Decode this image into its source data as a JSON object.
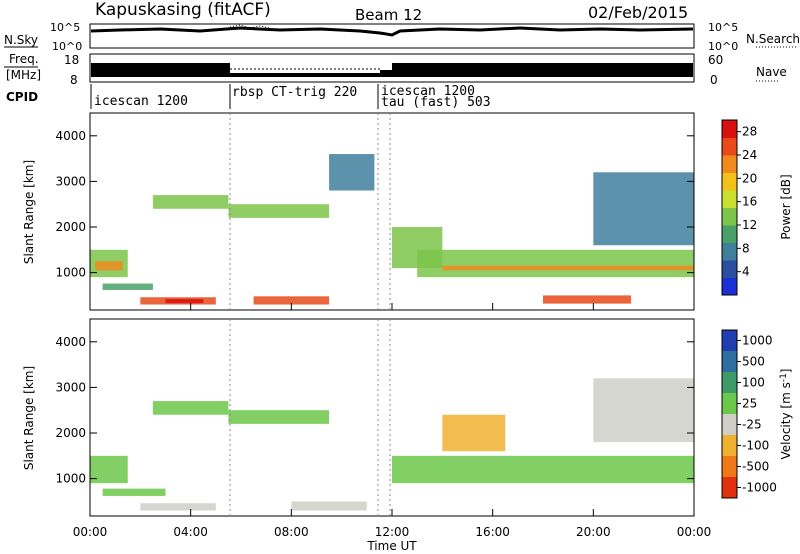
{
  "header": {
    "station": "Kapuskasing (fitACF)",
    "beam": "Beam 12",
    "date": "02/Feb/2015"
  },
  "top_panels": {
    "nsky_label": "N.Sky",
    "nsky_ticks": [
      "10^5",
      "10^0"
    ],
    "nsearch_label": "N.Search",
    "nsearch_ticks": [
      "10^5",
      "10^0"
    ],
    "freq_label_1": "Freq.",
    "freq_label_2": "[MHz]",
    "freq_ticks": [
      "18",
      "8"
    ],
    "nave_label": "Nave",
    "nave_ticks": [
      "60",
      "0"
    ],
    "cpid_label": "CPID"
  },
  "cpid_segments": [
    {
      "label": "icescan 1200",
      "start_hour": 0.0
    },
    {
      "label": "rbsp CT-trig 220",
      "start_hour": 5.5
    },
    {
      "label": "icescan 1200",
      "start_hour": 11.5
    },
    {
      "label": "tau (fast) 503",
      "start_hour": 11.5
    }
  ],
  "x_axis": {
    "label": "Time UT",
    "ticks": [
      "00:00",
      "04:00",
      "08:00",
      "12:00",
      "16:00",
      "20:00",
      "00:00"
    ]
  },
  "power_panel": {
    "ylabel": "Slant Range [km]",
    "yticks": [
      "1000",
      "2000",
      "3000",
      "4000"
    ],
    "colorbar_label": "Power [dB]",
    "colorbar_ticks": [
      "4",
      "8",
      "12",
      "16",
      "20",
      "24",
      "28"
    ],
    "colors": [
      "#1a2fd6",
      "#2b4fa0",
      "#3f7f9c",
      "#4aa06a",
      "#7cc44a",
      "#c9e030",
      "#f2c21a",
      "#f08a1c",
      "#e84a1a",
      "#d81010"
    ]
  },
  "velocity_panel": {
    "ylabel": "Slant Range [km]",
    "yticks": [
      "1000",
      "2000",
      "3000",
      "4000"
    ],
    "colorbar_label": "Velocity [m s",
    "colorbar_label_sup": "-1",
    "colorbar_ticks": [
      "1000",
      "500",
      "100",
      "25",
      "-25",
      "-100",
      "-500",
      "-1000"
    ],
    "colors": [
      "#1f3fb0",
      "#2f6fa0",
      "#3f9a6a",
      "#6cc84a",
      "#cfcfc8",
      "#f0b030",
      "#f07818",
      "#e03010"
    ]
  },
  "chart_data": [
    {
      "type": "heatmap",
      "title": "Power",
      "xlabel": "Time UT",
      "ylabel": "Slant Range [km]",
      "xlim": [
        0,
        24
      ],
      "ylim": [
        180,
        4500
      ],
      "zlabel": "Power [dB]",
      "zlim": [
        0,
        30
      ],
      "regions": [
        {
          "t0": 0.0,
          "t1": 1.5,
          "r0": 900,
          "r1": 1500,
          "value": 14
        },
        {
          "t0": 0.2,
          "t1": 1.3,
          "r0": 1050,
          "r1": 1250,
          "value": 22
        },
        {
          "t0": 0.5,
          "t1": 2.5,
          "r0": 620,
          "r1": 760,
          "value": 10
        },
        {
          "t0": 2.0,
          "t1": 5.0,
          "r0": 300,
          "r1": 460,
          "value": 24
        },
        {
          "t0": 3.0,
          "t1": 4.5,
          "r0": 330,
          "r1": 420,
          "value": 28
        },
        {
          "t0": 2.5,
          "t1": 5.5,
          "r0": 2400,
          "r1": 2700,
          "value": 14
        },
        {
          "t0": 5.5,
          "t1": 9.5,
          "r0": 2200,
          "r1": 2500,
          "value": 12
        },
        {
          "t0": 6.5,
          "t1": 9.5,
          "r0": 300,
          "r1": 480,
          "value": 24
        },
        {
          "t0": 9.5,
          "t1": 11.3,
          "r0": 2800,
          "r1": 3600,
          "value": 6
        },
        {
          "t0": 12.0,
          "t1": 14.0,
          "r0": 1100,
          "r1": 2000,
          "value": 14
        },
        {
          "t0": 13.0,
          "t1": 24.0,
          "r0": 900,
          "r1": 1500,
          "value": 12
        },
        {
          "t0": 14.0,
          "t1": 24.0,
          "r0": 1050,
          "r1": 1150,
          "value": 22
        },
        {
          "t0": 18.0,
          "t1": 21.5,
          "r0": 320,
          "r1": 500,
          "value": 26
        },
        {
          "t0": 20.0,
          "t1": 24.0,
          "r0": 1600,
          "r1": 3200,
          "value": 8
        }
      ]
    },
    {
      "type": "heatmap",
      "title": "Velocity",
      "xlabel": "Time UT",
      "ylabel": "Slant Range [km]",
      "xlim": [
        0,
        24
      ],
      "ylim": [
        180,
        4500
      ],
      "zlabel": "Velocity [m s-1]",
      "zlim": [
        -1000,
        1000
      ],
      "regions": [
        {
          "t0": 0.0,
          "t1": 1.5,
          "r0": 900,
          "r1": 1500,
          "value": 150
        },
        {
          "t0": 0.5,
          "t1": 3.0,
          "r0": 620,
          "r1": 780,
          "value": 0
        },
        {
          "t0": 2.0,
          "t1": 5.0,
          "r0": 300,
          "r1": 460,
          "value": -100
        },
        {
          "t0": 2.5,
          "t1": 5.5,
          "r0": 2400,
          "r1": 2700,
          "value": 0
        },
        {
          "t0": 5.5,
          "t1": 9.5,
          "r0": 2200,
          "r1": 2500,
          "value": 0
        },
        {
          "t0": 8.0,
          "t1": 11.0,
          "r0": 300,
          "r1": 500,
          "value": -200
        },
        {
          "t0": 12.0,
          "t1": 24.0,
          "r0": 900,
          "r1": 1500,
          "value": 0
        },
        {
          "t0": 14.0,
          "t1": 16.5,
          "r0": 1600,
          "r1": 2400,
          "value": -300
        },
        {
          "t0": 20.0,
          "t1": 24.0,
          "r0": 1800,
          "r1": 3200,
          "value": -150
        }
      ]
    }
  ]
}
